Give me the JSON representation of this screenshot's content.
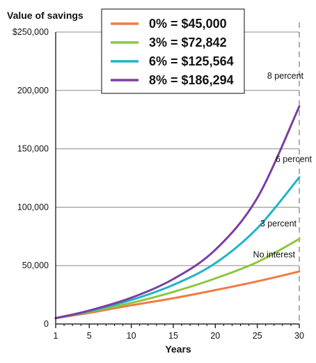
{
  "chart_data": {
    "type": "line",
    "title": "",
    "ylabel": "Value of savings",
    "xlabel": "Years",
    "x_ticks": [
      "1",
      "5",
      "10",
      "15",
      "20",
      "25",
      "30"
    ],
    "y_ticks": [
      "0",
      "50,000",
      "100,000",
      "150,000",
      "200,000",
      "$250,000"
    ],
    "xlim": [
      1,
      30
    ],
    "ylim": [
      0,
      250000
    ],
    "grid": "horizontal",
    "marker_line_x": 30,
    "legend_placement": "top-center",
    "series": [
      {
        "name": "0% = $45,000",
        "annotation": "No interest",
        "color": "#f07a42",
        "rate": 0,
        "x": [
          1,
          5,
          10,
          15,
          20,
          25,
          30
        ],
        "values": [
          5000,
          9500,
          16000,
          22000,
          29000,
          36500,
          45000
        ]
      },
      {
        "name": "3% = $72,842",
        "annotation": "3 percent",
        "color": "#8cc63f",
        "rate": 0.03,
        "x": [
          1,
          5,
          10,
          15,
          20,
          25,
          30
        ],
        "values": [
          5000,
          10500,
          18000,
          27500,
          39000,
          53000,
          72842
        ]
      },
      {
        "name": "6% = $125,564",
        "annotation": "6 percent",
        "color": "#1fb4c6",
        "rate": 0.06,
        "x": [
          1,
          5,
          10,
          15,
          20,
          25,
          30
        ],
        "values": [
          5000,
          11000,
          20500,
          33500,
          52000,
          82000,
          125564
        ]
      },
      {
        "name": "8% = $186,294",
        "annotation": "8 percent",
        "color": "#7a3fa0",
        "rate": 0.08,
        "x": [
          1,
          5,
          10,
          15,
          20,
          25,
          30
        ],
        "values": [
          5000,
          11500,
          22500,
          38500,
          63500,
          108000,
          186294
        ]
      }
    ]
  }
}
